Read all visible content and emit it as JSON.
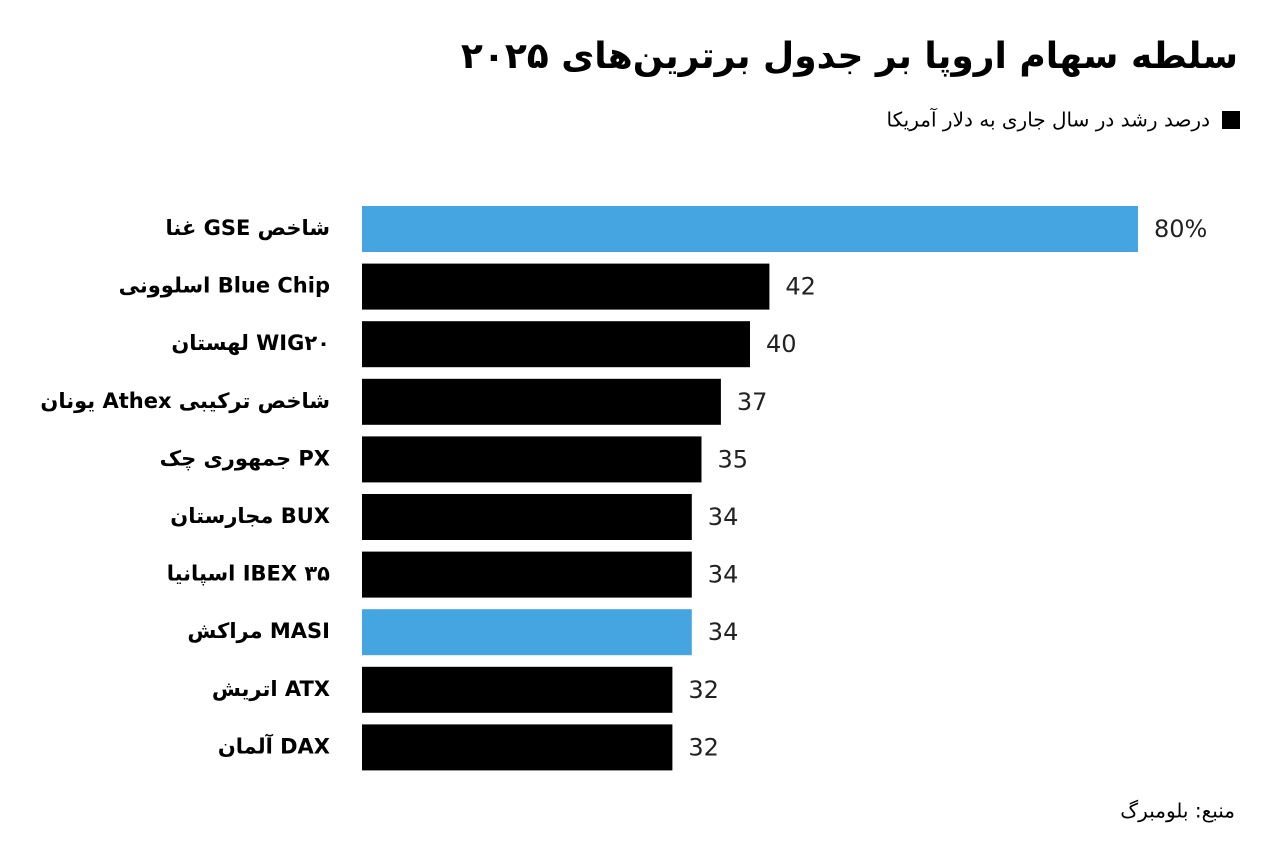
{
  "chart_data": {
    "type": "bar",
    "title": "سلطه سهام اروپا بر جدول برترین‌های ۲۰۲۵",
    "subtitle": "درصد رشد در سال جاری به دلار آمریکا",
    "source": "منبع: بلومبرگ",
    "categories": [
      "شاخص GSE غنا",
      "Blue Chip اسلوونی",
      "WIG۲۰ لهستان",
      "شاخص ترکیبی Athex یونان",
      "PX جمهوری چک",
      "BUX مجارستان",
      "IBEX ۳۵ اسپانیا",
      "MASI مراکش",
      "ATX اتریش",
      "DAX آلمان"
    ],
    "values": [
      80,
      42,
      40,
      37,
      35,
      34,
      34,
      34,
      32,
      32
    ],
    "value_labels": [
      "80%",
      "42",
      "40",
      "37",
      "35",
      "34",
      "34",
      "34",
      "32",
      "32"
    ],
    "colors": [
      "#45a5e0",
      "#000000",
      "#000000",
      "#000000",
      "#000000",
      "#000000",
      "#000000",
      "#45a5e0",
      "#000000",
      "#000000"
    ]
  }
}
